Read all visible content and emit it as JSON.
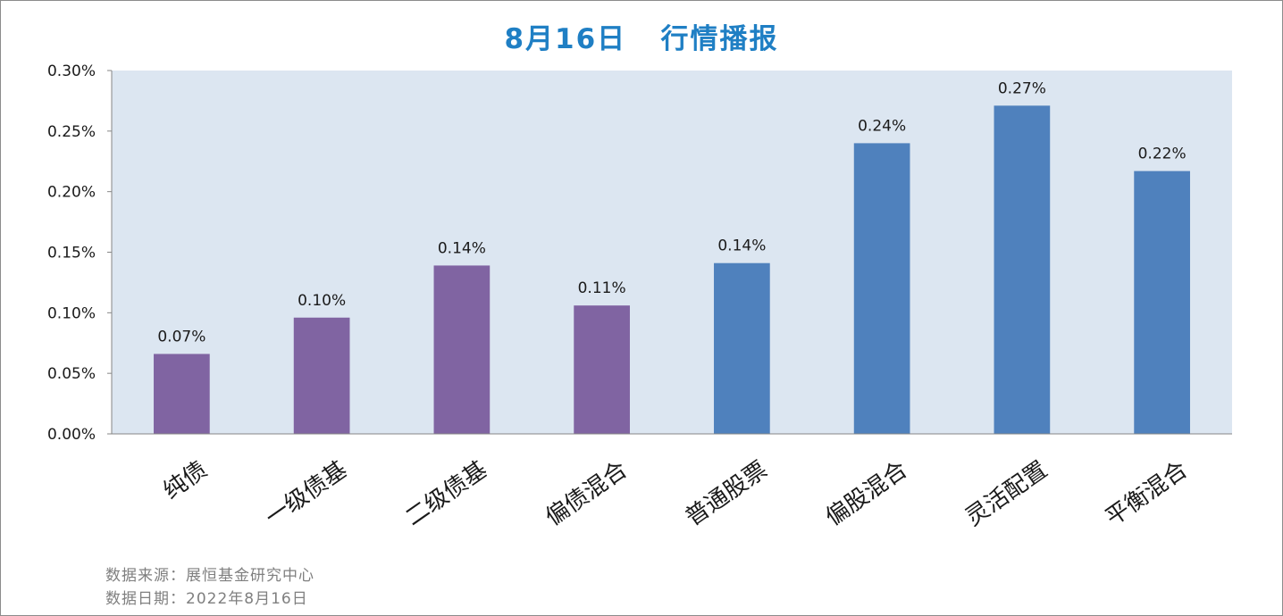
{
  "title": {
    "date": "8月16日",
    "text": "行情播报"
  },
  "chart_data": {
    "type": "bar",
    "categories": [
      "纯债",
      "一级债基",
      "二级债基",
      "偏债混合",
      "普通股票",
      "偏股混合",
      "灵活配置",
      "平衡混合"
    ],
    "values": [
      0.066,
      0.096,
      0.139,
      0.106,
      0.141,
      0.24,
      0.271,
      0.217
    ],
    "data_labels": [
      "0.07%",
      "0.10%",
      "0.14%",
      "0.11%",
      "0.14%",
      "0.24%",
      "0.27%",
      "0.22%"
    ],
    "bar_colors": [
      "#8064a2",
      "#8064a2",
      "#8064a2",
      "#8064a2",
      "#4f81bd",
      "#4f81bd",
      "#4f81bd",
      "#4f81bd"
    ],
    "ylim": [
      0,
      0.3
    ],
    "yticks": [
      0,
      0.05,
      0.1,
      0.15,
      0.2,
      0.25,
      0.3
    ],
    "ytick_labels": [
      "0.00%",
      "0.05%",
      "0.10%",
      "0.15%",
      "0.20%",
      "0.25%",
      "0.30%"
    ],
    "plot_background": "#dce6f1",
    "grid": false,
    "legend": "none"
  },
  "source": {
    "line1": "数据来源：展恒基金研究中心",
    "line2": "数据日期：2022年8月16日"
  }
}
